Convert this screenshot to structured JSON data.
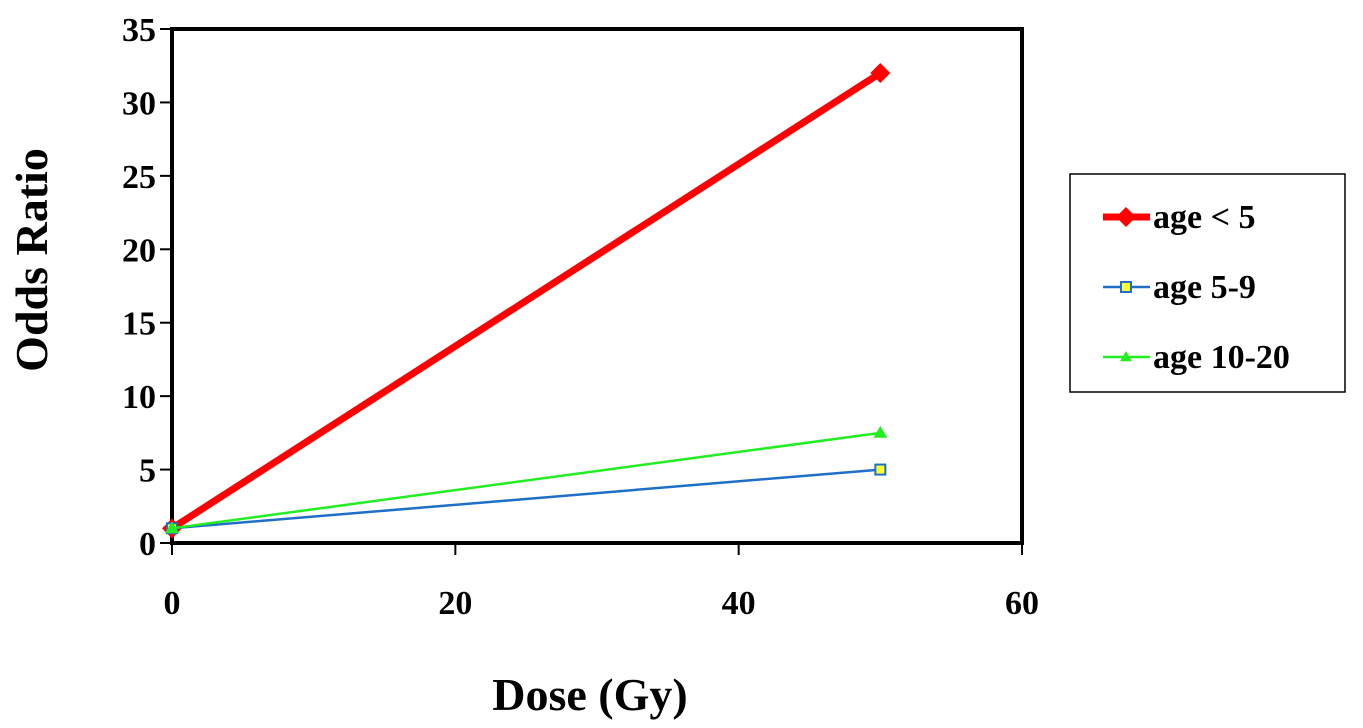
{
  "chart_data": {
    "type": "line",
    "title": "",
    "xlabel": "Dose (Gy)",
    "ylabel": "Odds Ratio",
    "xlim": [
      0,
      60
    ],
    "ylim": [
      0,
      35
    ],
    "x_ticks": [
      "0",
      "20",
      "40",
      "60"
    ],
    "y_ticks": [
      "0",
      "5",
      "10",
      "15",
      "20",
      "25",
      "30",
      "35"
    ],
    "grid": false,
    "legend_position": "right",
    "series": [
      {
        "name": "age < 5",
        "x": [
          0,
          50
        ],
        "y": [
          1,
          32
        ],
        "color": "#ff0000",
        "marker": "diamond"
      },
      {
        "name": "age 5-9",
        "x": [
          0,
          50
        ],
        "y": [
          1,
          5
        ],
        "color": "#1f6fc9",
        "marker": "square",
        "marker_fill": "#ffff33"
      },
      {
        "name": "age 10-20",
        "x": [
          0,
          50
        ],
        "y": [
          1,
          7.5
        ],
        "color": "#22ee22",
        "marker": "triangle"
      }
    ]
  }
}
